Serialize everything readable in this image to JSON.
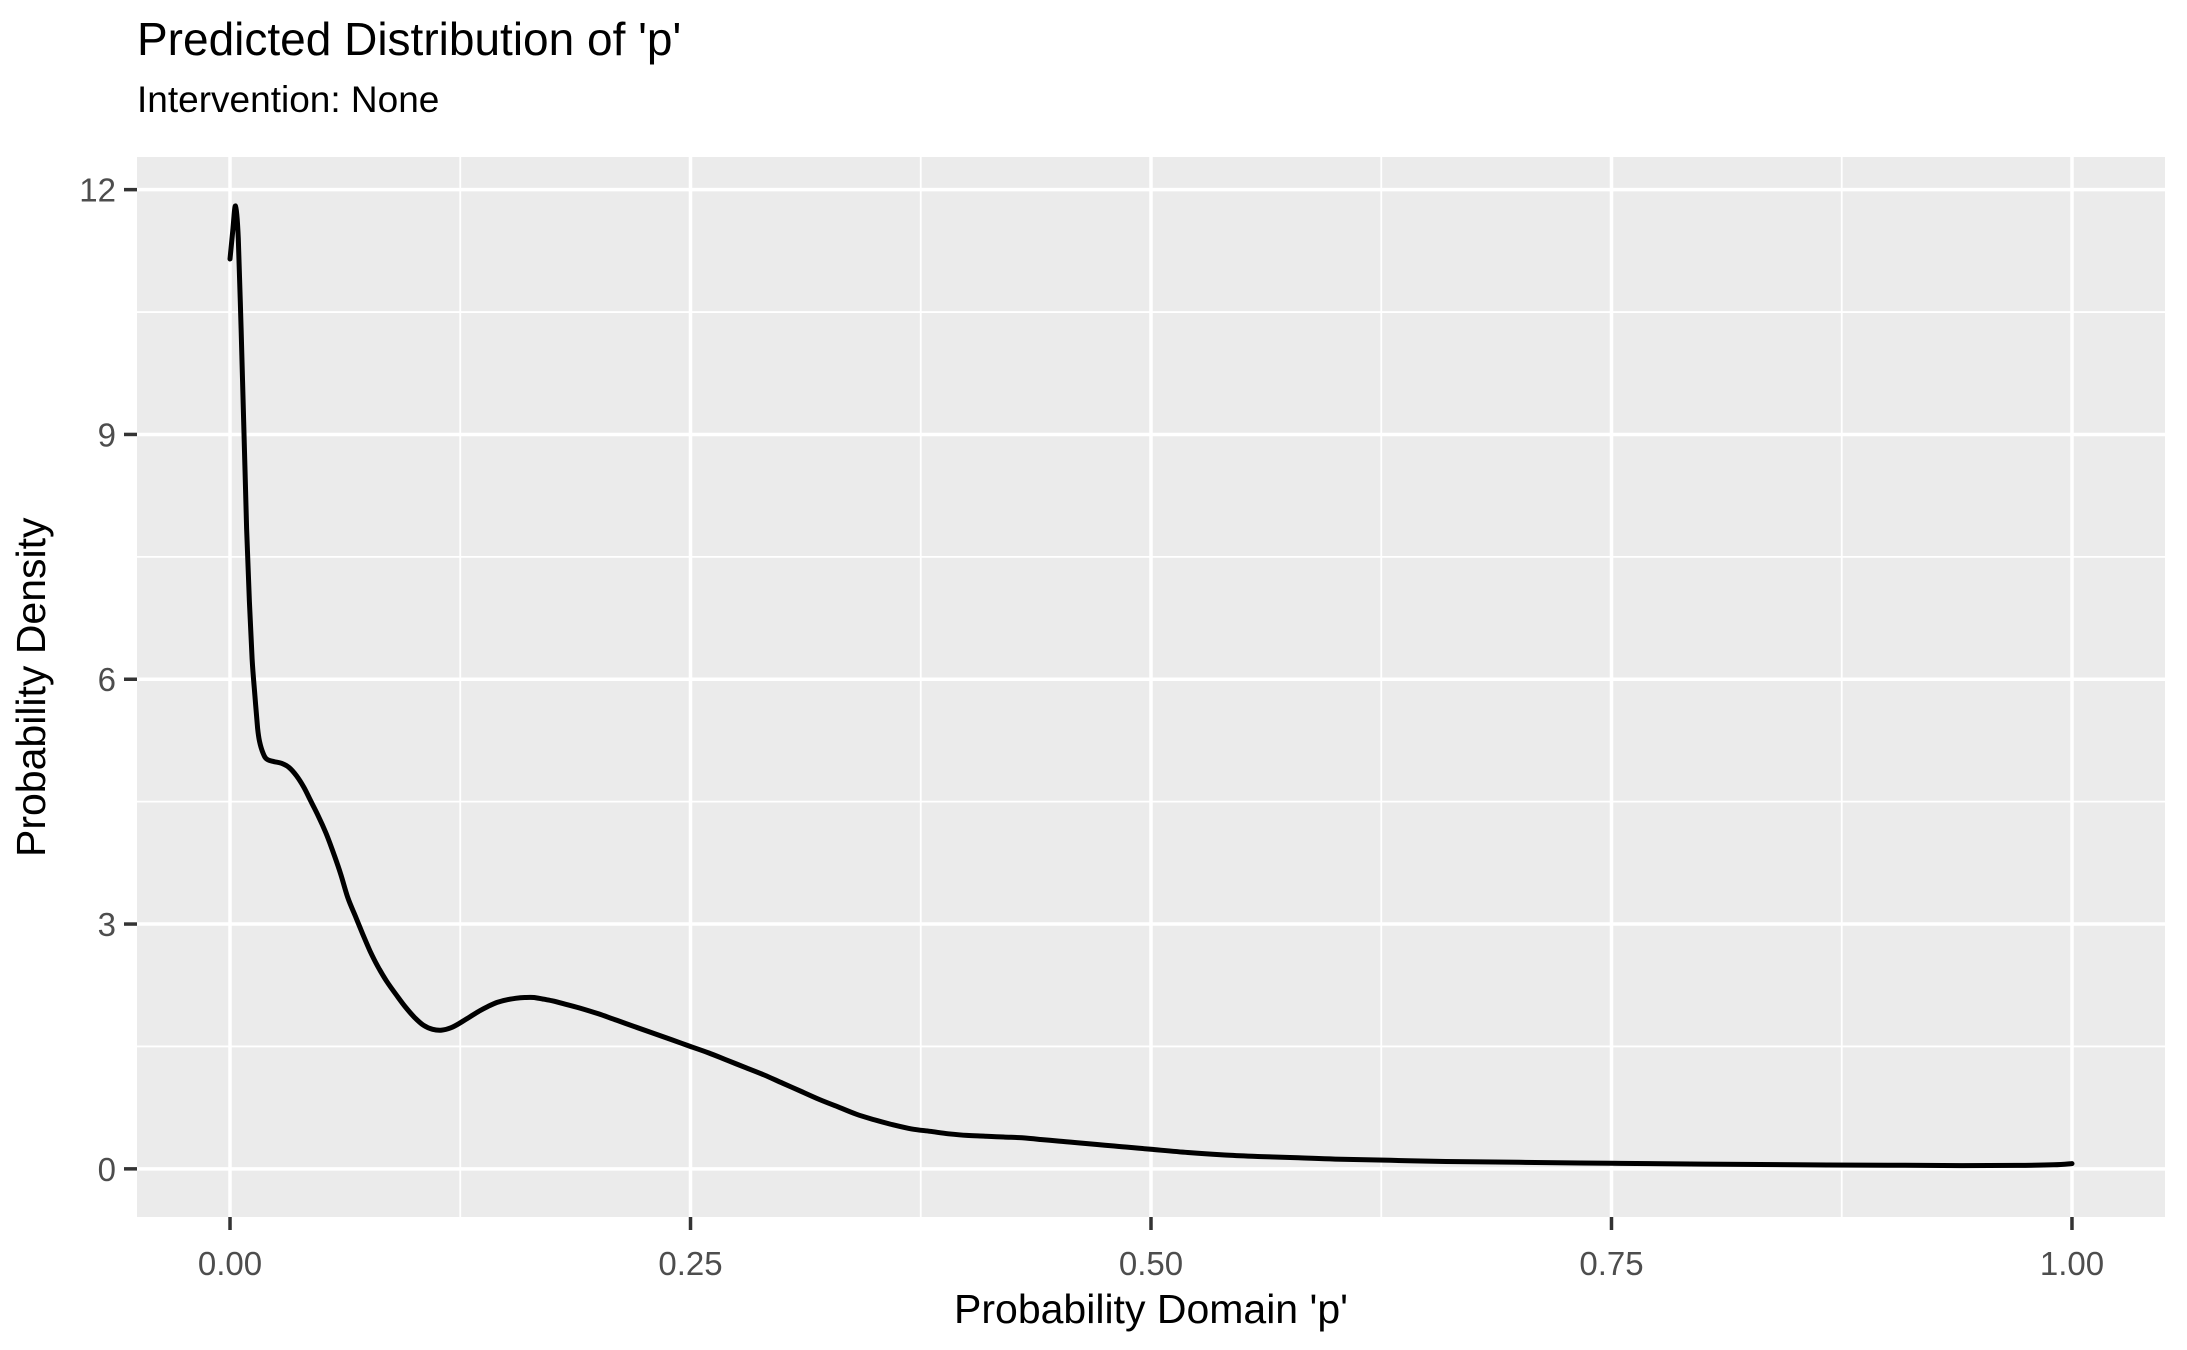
{
  "chart_data": {
    "type": "line",
    "subtype": "density-curve",
    "title": "Predicted Distribution of 'p'",
    "subtitle": "Intervention: None",
    "xlabel": "Probability Domain 'p'",
    "ylabel": "Probability Density",
    "x_ticks": [
      0,
      0.25,
      0.5,
      0.75,
      1.0
    ],
    "x_tick_labels": [
      "0.00",
      "0.25",
      "0.50",
      "0.75",
      "1.00"
    ],
    "y_ticks": [
      0,
      3,
      6,
      9,
      12
    ],
    "y_tick_labels": [
      "0",
      "3",
      "6",
      "9",
      "12"
    ],
    "x_minor_breaks": [
      0.125,
      0.375,
      0.625,
      0.875
    ],
    "y_minor_breaks": [
      1.5,
      4.5,
      7.5,
      10.5
    ],
    "xlim": [
      -0.0505,
      1.0505
    ],
    "ylim": [
      -0.59,
      12.4
    ],
    "grid": true,
    "legend_position": "none",
    "theme": {
      "panel_background": "#EBEBEB",
      "grid_color": "#FFFFFF",
      "tick_mark_color": "#333333",
      "tick_label_color": "#4D4D4D",
      "title_color": "#000000",
      "line_color": "#000000",
      "plot_background": "#FFFFFF"
    },
    "series": [
      {
        "name": "density of p",
        "points": [
          [
            0.0,
            11.15
          ],
          [
            0.0015,
            11.5
          ],
          [
            0.003,
            11.8
          ],
          [
            0.0045,
            11.4
          ],
          [
            0.006,
            10.3
          ],
          [
            0.0075,
            9.1
          ],
          [
            0.009,
            7.85
          ],
          [
            0.0105,
            6.95
          ],
          [
            0.012,
            6.25
          ],
          [
            0.0135,
            5.8
          ],
          [
            0.015,
            5.4
          ],
          [
            0.016,
            5.24
          ],
          [
            0.018,
            5.09
          ],
          [
            0.02,
            5.02
          ],
          [
            0.024,
            4.99
          ],
          [
            0.028,
            4.97
          ],
          [
            0.032,
            4.92
          ],
          [
            0.036,
            4.82
          ],
          [
            0.04,
            4.68
          ],
          [
            0.044,
            4.5
          ],
          [
            0.048,
            4.32
          ],
          [
            0.052,
            4.12
          ],
          [
            0.056,
            3.88
          ],
          [
            0.06,
            3.62
          ],
          [
            0.064,
            3.32
          ],
          [
            0.068,
            3.1
          ],
          [
            0.072,
            2.88
          ],
          [
            0.076,
            2.67
          ],
          [
            0.08,
            2.49
          ],
          [
            0.085,
            2.3
          ],
          [
            0.09,
            2.14
          ],
          [
            0.095,
            1.99
          ],
          [
            0.1,
            1.86
          ],
          [
            0.105,
            1.76
          ],
          [
            0.11,
            1.71
          ],
          [
            0.115,
            1.7
          ],
          [
            0.12,
            1.73
          ],
          [
            0.125,
            1.79
          ],
          [
            0.13,
            1.86
          ],
          [
            0.135,
            1.93
          ],
          [
            0.14,
            1.99
          ],
          [
            0.145,
            2.04
          ],
          [
            0.15,
            2.07
          ],
          [
            0.155,
            2.09
          ],
          [
            0.16,
            2.1
          ],
          [
            0.165,
            2.1
          ],
          [
            0.17,
            2.08
          ],
          [
            0.175,
            2.06
          ],
          [
            0.18,
            2.03
          ],
          [
            0.19,
            1.97
          ],
          [
            0.2,
            1.9
          ],
          [
            0.21,
            1.82
          ],
          [
            0.22,
            1.74
          ],
          [
            0.23,
            1.66
          ],
          [
            0.24,
            1.58
          ],
          [
            0.25,
            1.5
          ],
          [
            0.26,
            1.42
          ],
          [
            0.27,
            1.33
          ],
          [
            0.28,
            1.24
          ],
          [
            0.29,
            1.15
          ],
          [
            0.3,
            1.05
          ],
          [
            0.31,
            0.95
          ],
          [
            0.32,
            0.85
          ],
          [
            0.33,
            0.76
          ],
          [
            0.34,
            0.67
          ],
          [
            0.35,
            0.6
          ],
          [
            0.36,
            0.54
          ],
          [
            0.37,
            0.49
          ],
          [
            0.38,
            0.46
          ],
          [
            0.39,
            0.43
          ],
          [
            0.4,
            0.41
          ],
          [
            0.41,
            0.4
          ],
          [
            0.42,
            0.39
          ],
          [
            0.43,
            0.38
          ],
          [
            0.44,
            0.36
          ],
          [
            0.45,
            0.34
          ],
          [
            0.46,
            0.32
          ],
          [
            0.47,
            0.3
          ],
          [
            0.48,
            0.28
          ],
          [
            0.49,
            0.26
          ],
          [
            0.5,
            0.24
          ],
          [
            0.52,
            0.2
          ],
          [
            0.54,
            0.17
          ],
          [
            0.56,
            0.15
          ],
          [
            0.58,
            0.135
          ],
          [
            0.6,
            0.12
          ],
          [
            0.63,
            0.105
          ],
          [
            0.66,
            0.09
          ],
          [
            0.7,
            0.08
          ],
          [
            0.75,
            0.068
          ],
          [
            0.8,
            0.058
          ],
          [
            0.85,
            0.05
          ],
          [
            0.9,
            0.045
          ],
          [
            0.94,
            0.04
          ],
          [
            0.97,
            0.042
          ],
          [
            0.99,
            0.05
          ],
          [
            1.0,
            0.065
          ]
        ]
      }
    ]
  }
}
